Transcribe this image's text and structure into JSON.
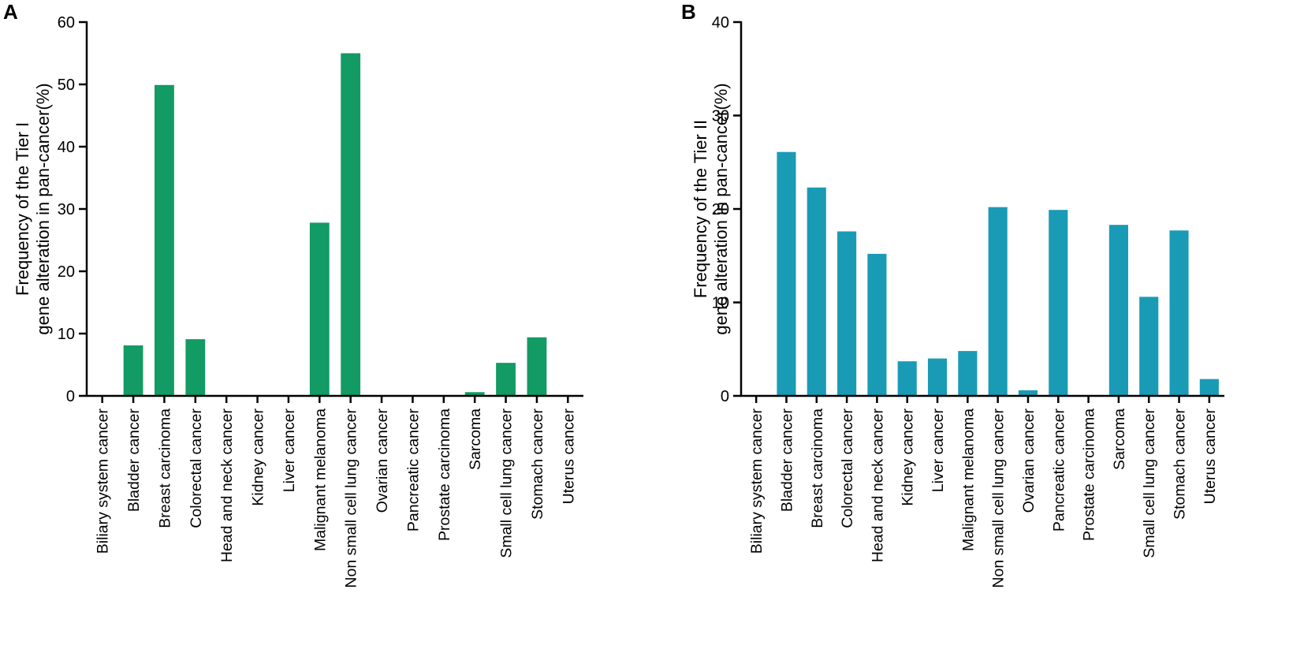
{
  "chart_data": [
    {
      "panel": "A",
      "type": "bar",
      "categories": [
        "Biliary system cancer",
        "Bladder cancer",
        "Breast carcinoma",
        "Colorectal cancer",
        "Head and neck cancer",
        "Kidney cancer",
        "Liver cancer",
        "Malignant melanoma",
        "Non small cell lung cancer",
        "Ovarian cancer",
        "Pancreatic cancer",
        "Prostate carcinoma",
        "Sarcoma",
        "Small cell lung cancer",
        "Stomach cancer",
        "Uterus cancer"
      ],
      "values": [
        0,
        8.1,
        49.9,
        9.1,
        0,
        0,
        0,
        27.8,
        55.0,
        0,
        0,
        0,
        0.6,
        5.3,
        9.4,
        0
      ],
      "ylabel_line1": "Frequency of the Tier I",
      "ylabel_line2": "gene alteration in pan-cancer(%)",
      "ylim": [
        0,
        60
      ],
      "yticks": [
        0,
        10,
        20,
        30,
        40,
        50,
        60
      ],
      "color": "#129b64"
    },
    {
      "panel": "B",
      "type": "bar",
      "categories": [
        "Biliary system cancer",
        "Bladder cancer",
        "Breast carcinoma",
        "Colorectal cancer",
        "Head and neck cancer",
        "Kidney cancer",
        "Liver cancer",
        "Malignant melanoma",
        "Non small cell lung cancer",
        "Ovarian cancer",
        "Pancreatic cancer",
        "Prostate carcinoma",
        "Sarcoma",
        "Small cell lung cancer",
        "Stomach cancer",
        "Uterus cancer"
      ],
      "values": [
        0,
        26.1,
        22.3,
        17.6,
        15.2,
        3.7,
        4.0,
        4.8,
        20.2,
        0.6,
        19.9,
        0,
        18.3,
        10.6,
        17.7,
        1.8
      ],
      "ylabel_line1": "Frequency of the Tier II",
      "ylabel_line2": "gene alteration in pan-cancer(%)",
      "ylim": [
        0,
        40
      ],
      "yticks": [
        0,
        10,
        20,
        30,
        40
      ],
      "color": "#1a9bb5"
    }
  ]
}
